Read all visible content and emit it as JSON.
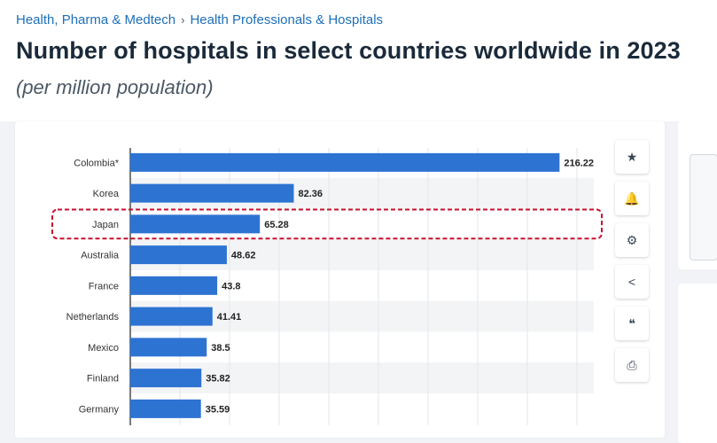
{
  "breadcrumb": {
    "items": [
      "Health, Pharma & Medtech",
      "Health Professionals & Hospitals"
    ],
    "separator": "›"
  },
  "header": {
    "title": "Number of hospitals in select countries worldwide in 2023",
    "subtitle": "(per million population)"
  },
  "colors": {
    "bar": "#2d73d2",
    "highlight": "#c8102e",
    "link": "#1d6fb8"
  },
  "chart_data": {
    "type": "bar",
    "orientation": "horizontal",
    "categories": [
      "Colombia*",
      "Korea",
      "Japan",
      "Australia",
      "France",
      "Netherlands",
      "Mexico",
      "Finland",
      "Germany"
    ],
    "values": [
      216.22,
      82.36,
      65.28,
      48.62,
      43.8,
      41.41,
      38.5,
      35.82,
      35.59
    ],
    "value_labels": [
      "216.22",
      "82.36",
      "65.28",
      "48.62",
      "43.8",
      "41.41",
      "38.5",
      "35.82",
      "35.59"
    ],
    "highlighted": "Japan",
    "xlim": [
      0,
      250
    ],
    "grid": true
  },
  "toolbar": {
    "buttons": [
      {
        "name": "favorite-button",
        "icon": "star-icon",
        "glyph": "★"
      },
      {
        "name": "notification-button",
        "icon": "bell-icon",
        "glyph": "🔔"
      },
      {
        "name": "settings-button",
        "icon": "gear-icon",
        "glyph": "⚙"
      },
      {
        "name": "share-button",
        "icon": "share-icon",
        "glyph": "<"
      },
      {
        "name": "cite-button",
        "icon": "quote-icon",
        "glyph": "❝"
      },
      {
        "name": "print-button",
        "icon": "printer-icon",
        "glyph": "⎙"
      }
    ]
  }
}
